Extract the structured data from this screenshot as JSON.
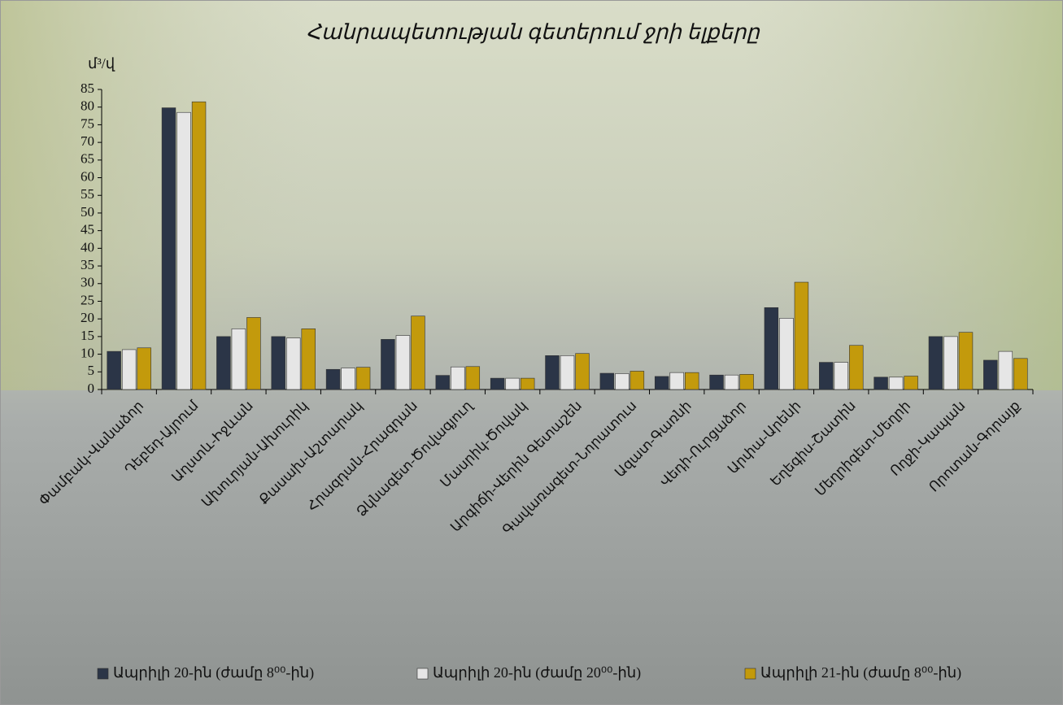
{
  "chart_data": {
    "type": "bar",
    "title": "Հանրապետության գետերում ջրի ելքերը",
    "y_label": "մ³/վ",
    "categories": [
      "Փամբակ-Վանաձոր",
      "Դեբեդ-Այրում",
      "Աղստև-Իջևան",
      "Ախուրյան-Ախուրիկ",
      "Քասախ-Աշտարակ",
      "Հրազդան-Հրազդան",
      "Ձկնագետ-Ծովագյուղ",
      "Մասրիկ-Ծովակ",
      "Արգիճի-Վերին Գետաշեն",
      "Գավառագետ-Նորատուս",
      "Ազատ-Գառնի",
      "Վեդի-Ուրցաձոր",
      "Արփա-Արենի",
      "Եղեգիս-Շատին",
      "Մեղրիգետ-Մեղրի",
      "Ողջի-Կապան",
      "Որոտան-Գորայք"
    ],
    "series": [
      {
        "name": "Ապրիլի 20-ին (ժամը 8⁰⁰-ին)",
        "color": "#2b3547",
        "values": [
          10.8,
          79.8,
          15,
          15,
          5.7,
          14.2,
          4,
          3.2,
          9.6,
          4.6,
          3.7,
          4.1,
          23.2,
          7.7,
          3.5,
          15,
          8.3
        ]
      },
      {
        "name": "Ապրիլի 20-ին (ժամը 20⁰⁰-ին)",
        "color": "#e6e6e6",
        "values": [
          11.3,
          78.5,
          17.2,
          14.6,
          6.1,
          15.3,
          6.4,
          3.2,
          9.6,
          4.5,
          4.8,
          4.1,
          20.2,
          7.7,
          3.5,
          15,
          10.8
        ]
      },
      {
        "name": "Ապրիլի 21-ին (ժամը 8⁰⁰-ին)",
        "color": "#c39a0c",
        "values": [
          11.8,
          81.5,
          20.4,
          17.2,
          6.3,
          20.8,
          6.5,
          3.2,
          10.2,
          5.2,
          4.8,
          4.3,
          30.4,
          12.5,
          3.8,
          16.2,
          8.8
        ]
      }
    ],
    "ylim": [
      0,
      85
    ],
    "yticks": [
      0,
      5,
      10,
      15,
      20,
      25,
      30,
      35,
      40,
      45,
      50,
      55,
      60,
      65,
      70,
      75,
      80,
      85
    ],
    "grid": false,
    "legend": "bottom"
  }
}
